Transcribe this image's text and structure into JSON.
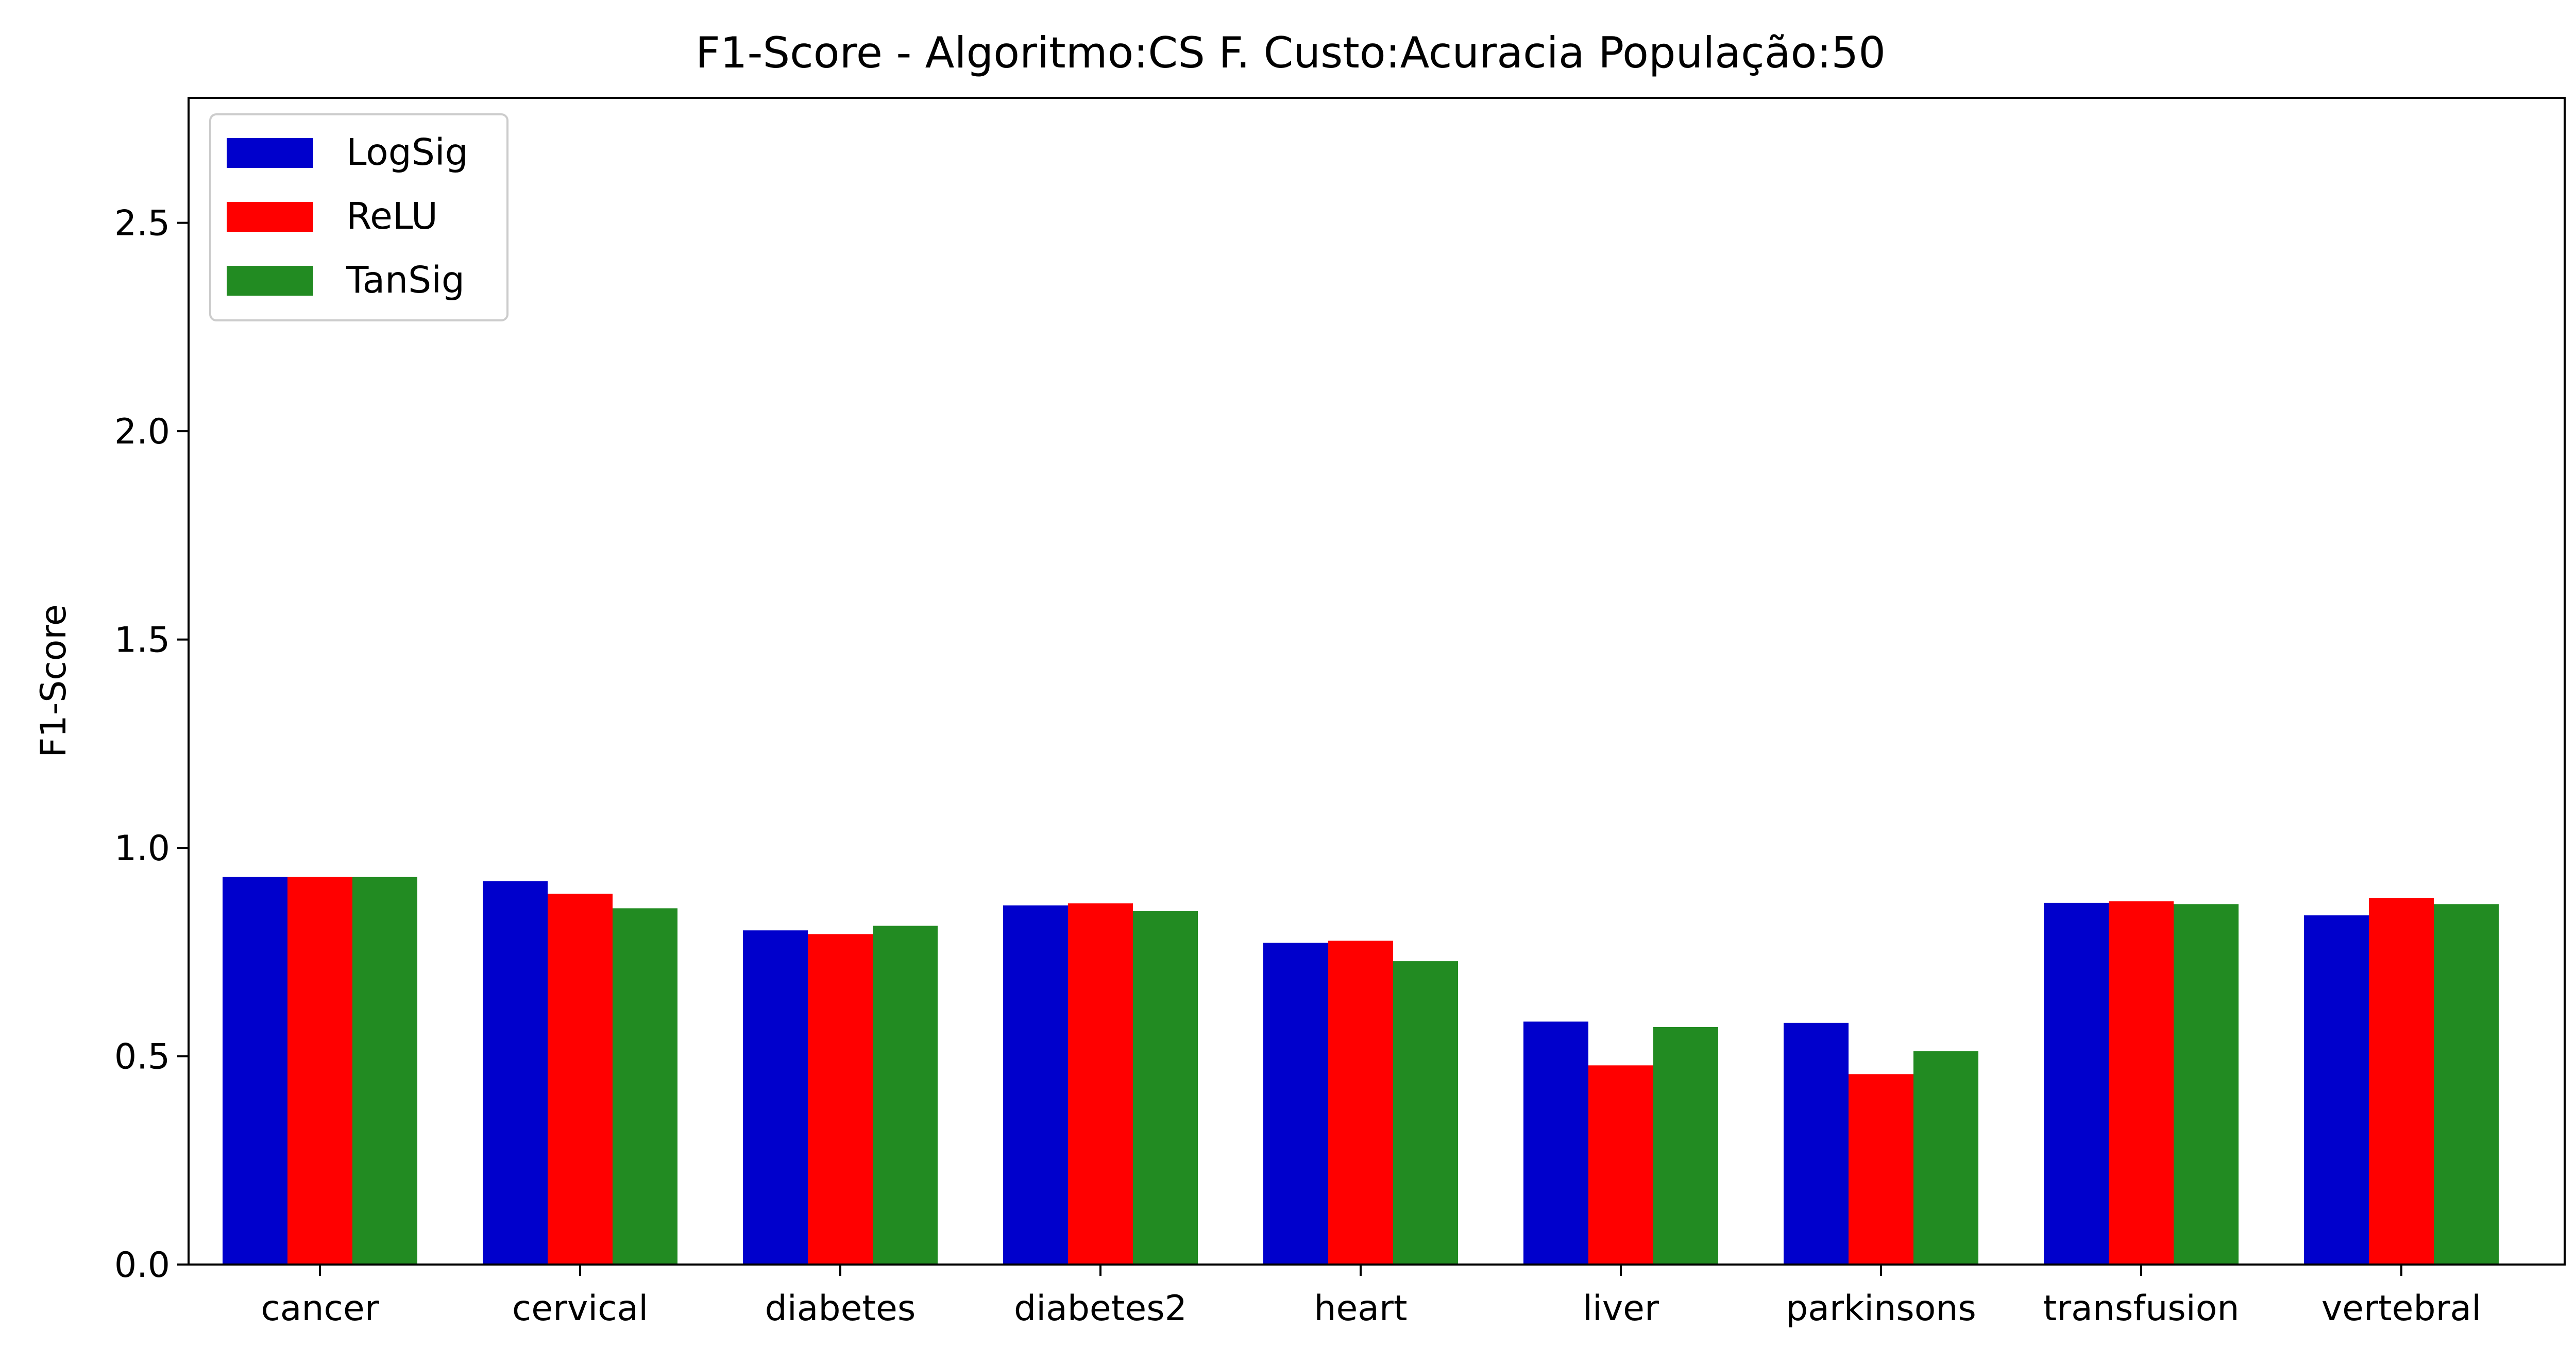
{
  "chart_data": {
    "type": "bar",
    "title": "F1-Score - Algoritmo:CS F. Custo:Acuracia População:50",
    "xlabel": "",
    "ylabel": "F1-Score",
    "ylim": [
      0,
      2.8
    ],
    "yticks": [
      "0.0",
      "0.5",
      "1.0",
      "1.5",
      "2.0",
      "2.5"
    ],
    "grid": false,
    "legend_position": "top-left",
    "categories": [
      "cancer",
      "cervical",
      "diabetes",
      "diabetes2",
      "heart",
      "liver",
      "parkinsons",
      "transfusion",
      "vertebral"
    ],
    "series": [
      {
        "name": "LogSig",
        "color": "#0000cc",
        "values": [
          0.93,
          0.92,
          0.802,
          0.862,
          0.772,
          0.583,
          0.58,
          0.868,
          0.838
        ]
      },
      {
        "name": "ReLU",
        "color": "#ff0000",
        "values": [
          0.93,
          0.89,
          0.793,
          0.867,
          0.777,
          0.478,
          0.457,
          0.872,
          0.88
        ]
      },
      {
        "name": "TanSig",
        "color": "#228b22",
        "values": [
          0.93,
          0.855,
          0.813,
          0.848,
          0.728,
          0.57,
          0.512,
          0.865,
          0.865
        ]
      }
    ]
  }
}
